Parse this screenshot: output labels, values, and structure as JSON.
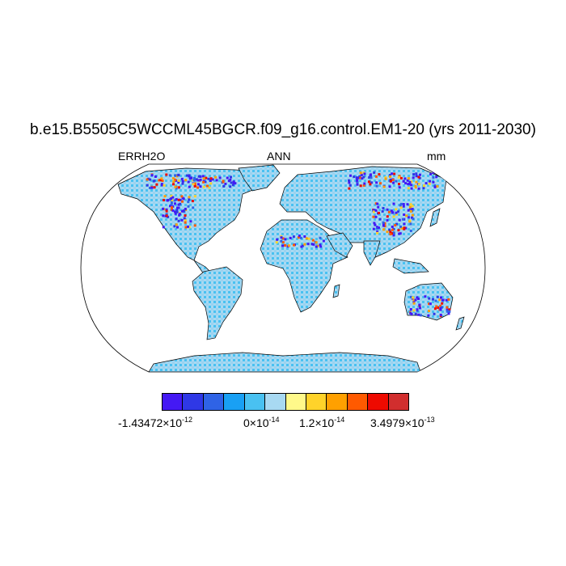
{
  "title": "b.e15.B5505C5WCCML45BGCR.f09_g16.control.EM1-20 (yrs 2011-2030)",
  "left_label": "ERRH2O",
  "center_label": "ANN",
  "right_label": "mm",
  "colorbar": {
    "colors": [
      "#4419F4",
      "#2F38E6",
      "#2F63E6",
      "#19A0F4",
      "#49C1F1",
      "#A8D9F2",
      "#FFF98A",
      "#FFD32A",
      "#FFA000",
      "#FF5A00",
      "#EE0A00",
      "#D12E2E"
    ],
    "labels": [
      {
        "mantissa": "-1.43472×10",
        "exponent": "-12"
      },
      {
        "mantissa": "0×10",
        "exponent": "-14"
      },
      {
        "mantissa": "1.2×10",
        "exponent": "-14"
      },
      {
        "mantissa": "3.4979×10",
        "exponent": "-13"
      }
    ]
  },
  "map": {
    "projection": "Robinson",
    "land_color": "#A8D9F2",
    "ocean_color": "#FFFFFF",
    "coastline_color": "#000000"
  }
}
